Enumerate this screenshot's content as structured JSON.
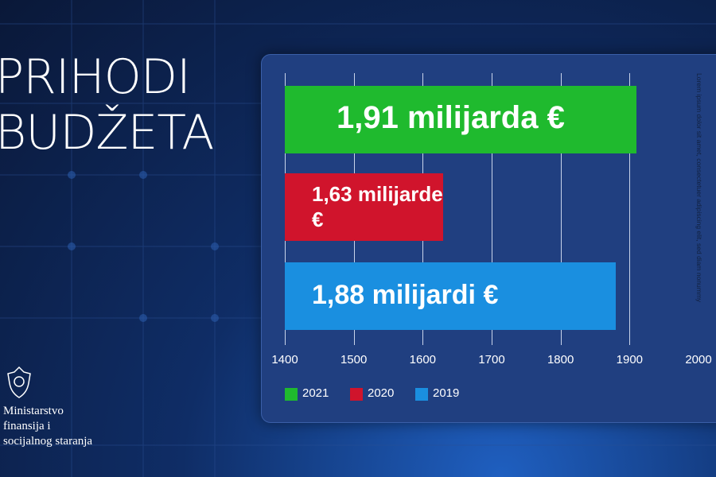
{
  "chart_data": {
    "type": "hbar",
    "title_lines": [
      "PRIHODI",
      "BUDŽETA"
    ],
    "annotation": "Lorem ipsum dolor sit amet, consectetuer adipiscing elit, sed diam nonummy",
    "series": [
      {
        "name": "2021",
        "color": "#1fba2e",
        "values": [
          1910
        ],
        "value_labels": [
          "1,91 milijarda €"
        ]
      },
      {
        "name": "2020",
        "color": "#d0142c",
        "values": [
          1630
        ],
        "value_labels": [
          "1,63 milijarde €"
        ]
      },
      {
        "name": "2019",
        "color": "#1a8fe0",
        "values": [
          1880
        ],
        "value_labels": [
          "1,88 milijardi €"
        ]
      }
    ],
    "xlim": [
      1400,
      2000
    ],
    "xticks": [
      1400,
      1500,
      1600,
      1700,
      1800,
      1900,
      2000
    ],
    "grid": true
  },
  "logo": {
    "lines": [
      "Ministarstvo",
      "finansija i",
      "socijalnog staranja"
    ]
  }
}
